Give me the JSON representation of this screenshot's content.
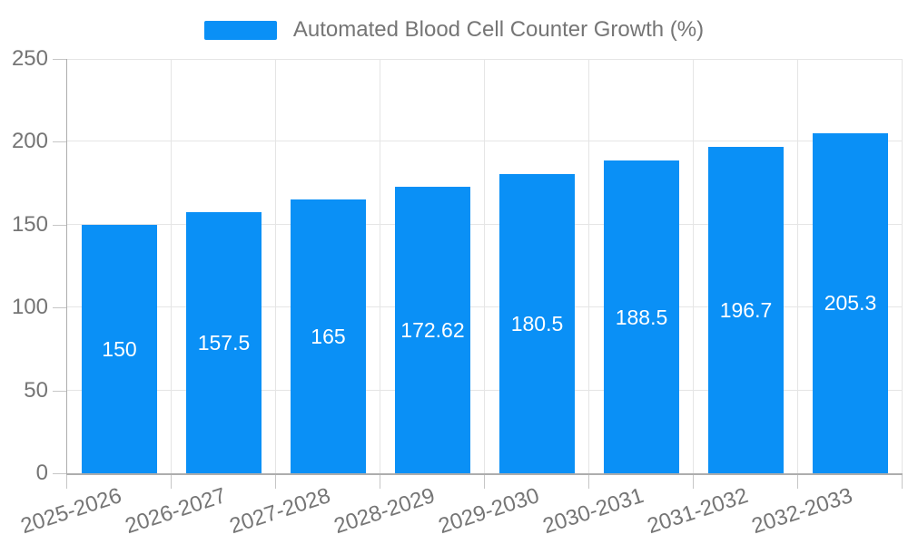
{
  "chart_data": {
    "type": "bar",
    "title": "Automated Blood Cell Counter Growth (%)",
    "categories": [
      "2025-2026",
      "2026-2027",
      "2027-2028",
      "2028-2029",
      "2029-2030",
      "2030-2031",
      "2031-2032",
      "2032-2033"
    ],
    "values": [
      150,
      157.5,
      165,
      172.62,
      180.5,
      188.5,
      196.7,
      205.3
    ],
    "value_labels": [
      "150",
      "157.5",
      "165",
      "172.62",
      "180.5",
      "188.5",
      "196.7",
      "205.3"
    ],
    "xlabel": "",
    "ylabel": "",
    "ylim": [
      0,
      250
    ],
    "y_ticks": [
      0,
      50,
      100,
      150,
      200,
      250
    ],
    "grid": "horizontal and vertical gridlines on",
    "legend_position": "top-center",
    "bar_label_position": "inside-center",
    "x_label_rotation_deg": -18
  },
  "legend": {
    "label": "Automated Blood Cell Counter Growth (%)"
  },
  "colors": {
    "bar": "#0A90F6",
    "grid": "#E5E5E5",
    "axis": "#ADADAD",
    "tick": "#C6C6C6",
    "text": "#757575",
    "bar_label": "#FFFFFF",
    "background": "#FFFFFF"
  }
}
